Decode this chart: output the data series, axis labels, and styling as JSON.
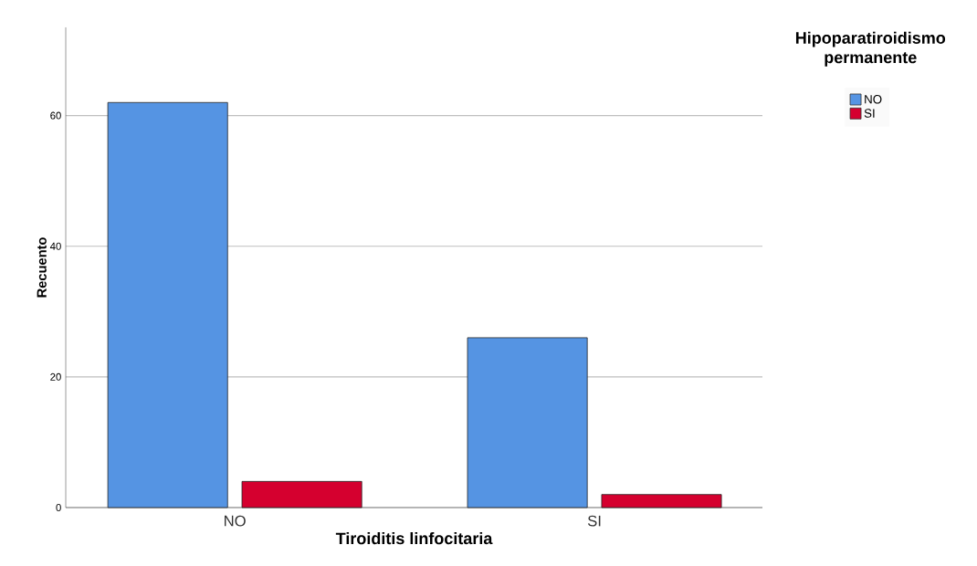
{
  "chart_data": {
    "type": "bar",
    "xlabel": "Tiroiditis linfocitaria",
    "ylabel": "Recuento",
    "legend_title": "Hipoparatiroidismo permanente",
    "categories": [
      "NO",
      "SI"
    ],
    "series": [
      {
        "name": "NO",
        "color": "#5594e3",
        "values": [
          62,
          26
        ]
      },
      {
        "name": "SI",
        "color": "#d5002f",
        "values": [
          4,
          2
        ]
      }
    ],
    "ylim": [
      0,
      73.5
    ],
    "yticks": [
      0,
      20,
      40,
      60
    ],
    "grid": "y",
    "legend": "top right"
  }
}
